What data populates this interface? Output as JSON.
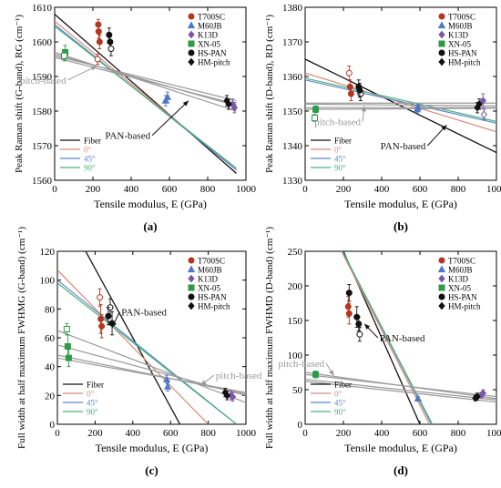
{
  "legend_markers": [
    {
      "label": "T700SC",
      "color": "#b5351f",
      "shape": "circle"
    },
    {
      "label": "M60JB",
      "color": "#4f78c6",
      "shape": "triangle"
    },
    {
      "label": "K13D",
      "color": "#7c56a8",
      "shape": "diamond"
    },
    {
      "label": "XN-05",
      "color": "#2e9a48",
      "shape": "square"
    },
    {
      "label": "HS-PAN",
      "color": "#111111",
      "shape": "circle"
    },
    {
      "label": "HM-pitch",
      "color": "#111111",
      "shape": "diamond"
    }
  ],
  "legend_lines": [
    {
      "label": "Fiber",
      "color": "#111111"
    },
    {
      "label": "0°",
      "color": "#d98a7a"
    },
    {
      "label": "45°",
      "color": "#5b86c8"
    },
    {
      "label": "90°",
      "color": "#4db07a"
    }
  ],
  "chart_data": [
    {
      "id": "a",
      "panel_label": "(a)",
      "type": "scatter",
      "ylabel": "Peak Raman shift (G-band), RG (cm⁻¹)",
      "xlabel": "Tensile modulus, E (GPa)",
      "xlim": [
        0,
        1000
      ],
      "ylim": [
        1560,
        1610
      ],
      "xticks": [
        0,
        200,
        400,
        600,
        800,
        1000
      ],
      "yticks": [
        1560,
        1570,
        1580,
        1590,
        1600,
        1610
      ],
      "annotations": [
        {
          "text": "pitch-based",
          "color": "#9a9a9a",
          "at": [
            70,
            1589
          ],
          "arrow_to": [
            220,
            1593
          ]
        },
        {
          "text": "PAN-based",
          "color": "#111111",
          "at": [
            510,
            1573
          ],
          "arrow_to": [
            700,
            1583
          ]
        }
      ],
      "lines": [
        {
          "series": "Fiber",
          "color": "#111111",
          "x": [
            0,
            950
          ],
          "y": [
            1608,
            1562
          ]
        },
        {
          "series": "0°",
          "color": "#d98a7a",
          "x": [
            0,
            950
          ],
          "y": [
            1606,
            1563
          ]
        },
        {
          "series": "45°",
          "color": "#5b86c8",
          "x": [
            0,
            950
          ],
          "y": [
            1605,
            1563
          ]
        },
        {
          "series": "90°",
          "color": "#4db07a",
          "x": [
            0,
            950
          ],
          "y": [
            1604.5,
            1563.5
          ]
        },
        {
          "series": "pitch",
          "color": "#9a9a9a",
          "x": [
            0,
            950
          ],
          "y": [
            1597,
            1580
          ]
        },
        {
          "series": "pitch",
          "color": "#9a9a9a",
          "x": [
            0,
            950
          ],
          "y": [
            1596.5,
            1581.5
          ]
        },
        {
          "series": "pitch",
          "color": "#9a9a9a",
          "x": [
            0,
            950
          ],
          "y": [
            1596,
            1583
          ]
        },
        {
          "series": "pitch",
          "color": "#9a9a9a",
          "x": [
            0,
            950
          ],
          "y": [
            1595.5,
            1582
          ]
        }
      ],
      "points": [
        {
          "series": "T700SC",
          "x": 230,
          "y": 1603,
          "err": 2
        },
        {
          "series": "T700SC",
          "x": 225,
          "y": 1595,
          "err": 1.5,
          "hollow": true
        },
        {
          "series": "T700SC",
          "x": 235,
          "y": 1600,
          "err": 2
        },
        {
          "series": "T700SC",
          "x": 228,
          "y": 1605,
          "err": 1.5
        },
        {
          "series": "M60JB",
          "x": 590,
          "y": 1584,
          "err": 1.5
        },
        {
          "series": "M60JB",
          "x": 580,
          "y": 1583,
          "err": 1.5
        },
        {
          "series": "K13D",
          "x": 940,
          "y": 1581,
          "err": 1.5
        },
        {
          "series": "K13D",
          "x": 930,
          "y": 1582,
          "err": 1.5
        },
        {
          "series": "XN-05",
          "x": 55,
          "y": 1597,
          "err": 2
        },
        {
          "series": "XN-05",
          "x": 50,
          "y": 1596,
          "err": 1.5,
          "hollow": true
        },
        {
          "series": "HS-PAN",
          "x": 290,
          "y": 1600,
          "err": 2
        },
        {
          "series": "HS-PAN",
          "x": 295,
          "y": 1598,
          "err": 2,
          "hollow": true
        },
        {
          "series": "HS-PAN",
          "x": 285,
          "y": 1602,
          "err": 2
        },
        {
          "series": "HM-pitch",
          "x": 900,
          "y": 1583,
          "err": 1.5
        },
        {
          "series": "HM-pitch",
          "x": 910,
          "y": 1582,
          "err": 1.5
        }
      ]
    },
    {
      "id": "b",
      "panel_label": "(b)",
      "type": "scatter",
      "ylabel": "Peak Raman shift (D-band), RD (cm⁻¹)",
      "xlabel": "Tensile modulus, E (GPa)",
      "xlim": [
        0,
        1000
      ],
      "ylim": [
        1330,
        1380
      ],
      "xticks": [
        0,
        200,
        400,
        600,
        800,
        1000
      ],
      "yticks": [
        1330,
        1340,
        1350,
        1360,
        1370,
        1380
      ],
      "annotations": [
        {
          "text": "pitch-based",
          "color": "#9a9a9a",
          "at": [
            300,
            1347
          ],
          "arrow_to": [
            310,
            1351.5
          ]
        },
        {
          "text": "PAN-based",
          "color": "#111111",
          "at": [
            640,
            1340
          ],
          "arrow_to": [
            740,
            1346
          ]
        }
      ],
      "lines": [
        {
          "series": "Fiber",
          "color": "#111111",
          "x": [
            0,
            1000
          ],
          "y": [
            1365,
            1338
          ]
        },
        {
          "series": "0°",
          "color": "#d98a7a",
          "x": [
            0,
            1000
          ],
          "y": [
            1361,
            1344
          ]
        },
        {
          "series": "45°",
          "color": "#5b86c8",
          "x": [
            0,
            1000
          ],
          "y": [
            1359,
            1346.5
          ]
        },
        {
          "series": "90°",
          "color": "#4db07a",
          "x": [
            0,
            1000
          ],
          "y": [
            1359.5,
            1347
          ]
        },
        {
          "series": "pitch",
          "color": "#9a9a9a",
          "x": [
            0,
            1000
          ],
          "y": [
            1351,
            1351
          ]
        },
        {
          "series": "pitch",
          "color": "#9a9a9a",
          "x": [
            0,
            1000
          ],
          "y": [
            1352,
            1351.5
          ]
        },
        {
          "series": "pitch",
          "color": "#9a9a9a",
          "x": [
            0,
            1000
          ],
          "y": [
            1350.5,
            1350.8
          ]
        },
        {
          "series": "pitch",
          "color": "#9a9a9a",
          "x": [
            0,
            1000
          ],
          "y": [
            1352.3,
            1352.3
          ]
        }
      ],
      "points": [
        {
          "series": "T700SC",
          "x": 230,
          "y": 1361,
          "err": 2,
          "hollow": true
        },
        {
          "series": "T700SC",
          "x": 235,
          "y": 1357,
          "err": 2
        },
        {
          "series": "T700SC",
          "x": 240,
          "y": 1355,
          "err": 2
        },
        {
          "series": "M60JB",
          "x": 590,
          "y": 1351,
          "err": 1
        },
        {
          "series": "M60JB",
          "x": 585,
          "y": 1350.5,
          "err": 1
        },
        {
          "series": "K13D",
          "x": 930,
          "y": 1353,
          "err": 2
        },
        {
          "series": "K13D",
          "x": 935,
          "y": 1349,
          "err": 1.5,
          "hollow": true
        },
        {
          "series": "XN-05",
          "x": 50,
          "y": 1348,
          "err": 1,
          "hollow": true
        },
        {
          "series": "XN-05",
          "x": 55,
          "y": 1350.5,
          "err": 1
        },
        {
          "series": "HS-PAN",
          "x": 280,
          "y": 1357,
          "err": 2
        },
        {
          "series": "HS-PAN",
          "x": 290,
          "y": 1355,
          "err": 2,
          "hollow": true
        },
        {
          "series": "HS-PAN",
          "x": 285,
          "y": 1356,
          "err": 2
        },
        {
          "series": "HM-pitch",
          "x": 900,
          "y": 1351,
          "err": 1.5
        },
        {
          "series": "HM-pitch",
          "x": 910,
          "y": 1352,
          "err": 1.5
        }
      ]
    },
    {
      "id": "c",
      "panel_label": "(c)",
      "type": "scatter",
      "ylabel": "Full width at half maximum FWHMG (G-band) (cm⁻¹)",
      "xlabel": "Tensile modulus, E (GPa)",
      "xlim": [
        0,
        1000
      ],
      "ylim": [
        0,
        120
      ],
      "xticks": [
        0,
        200,
        400,
        600,
        800,
        1000
      ],
      "yticks": [
        0,
        20,
        40,
        60,
        80,
        100,
        120
      ],
      "annotations": [
        {
          "text": "PAN-based",
          "color": "#111111",
          "at": [
            330,
            78
          ],
          "arrow_to": [
            290,
            67
          ]
        },
        {
          "text": "pitch-based",
          "color": "#9a9a9a",
          "at": [
            830,
            34
          ],
          "arrow_to": [
            760,
            27
          ]
        }
      ],
      "lines": [
        {
          "series": "Fiber",
          "color": "#111111",
          "x": [
            150,
            650
          ],
          "y": [
            120,
            0
          ]
        },
        {
          "series": "0°",
          "color": "#d98a7a",
          "x": [
            0,
            800
          ],
          "y": [
            107,
            0
          ]
        },
        {
          "series": "45°",
          "color": "#5b86c8",
          "x": [
            0,
            950
          ],
          "y": [
            100,
            0
          ]
        },
        {
          "series": "90°",
          "color": "#4db07a",
          "x": [
            0,
            950
          ],
          "y": [
            98,
            0
          ]
        },
        {
          "series": "pitch",
          "color": "#9a9a9a",
          "x": [
            0,
            1000
          ],
          "y": [
            65,
            15
          ]
        },
        {
          "series": "pitch",
          "color": "#9a9a9a",
          "x": [
            0,
            1000
          ],
          "y": [
            55,
            20
          ]
        },
        {
          "series": "pitch",
          "color": "#9a9a9a",
          "x": [
            0,
            1000
          ],
          "y": [
            48,
            21
          ]
        },
        {
          "series": "pitch",
          "color": "#9a9a9a",
          "x": [
            0,
            1000
          ],
          "y": [
            46,
            22
          ]
        }
      ],
      "points": [
        {
          "series": "T700SC",
          "x": 225,
          "y": 88,
          "err": 6,
          "hollow": true
        },
        {
          "series": "T700SC",
          "x": 230,
          "y": 73,
          "err": 10
        },
        {
          "series": "T700SC",
          "x": 235,
          "y": 68,
          "err": 8
        },
        {
          "series": "M60JB",
          "x": 580,
          "y": 31,
          "err": 3
        },
        {
          "series": "M60JB",
          "x": 585,
          "y": 26,
          "err": 3
        },
        {
          "series": "K13D",
          "x": 920,
          "y": 20,
          "err": 3
        },
        {
          "series": "K13D",
          "x": 930,
          "y": 19,
          "err": 3
        },
        {
          "series": "XN-05",
          "x": 50,
          "y": 66,
          "err": 4,
          "hollow": true
        },
        {
          "series": "XN-05",
          "x": 55,
          "y": 54,
          "err": 8
        },
        {
          "series": "XN-05",
          "x": 60,
          "y": 46,
          "err": 6
        },
        {
          "series": "HS-PAN",
          "x": 280,
          "y": 81,
          "err": 6,
          "hollow": true
        },
        {
          "series": "HS-PAN",
          "x": 270,
          "y": 75,
          "err": 6
        },
        {
          "series": "HS-PAN",
          "x": 290,
          "y": 70,
          "err": 8
        },
        {
          "series": "HM-pitch",
          "x": 900,
          "y": 20,
          "err": 3
        },
        {
          "series": "HM-pitch",
          "x": 890,
          "y": 22,
          "err": 3
        }
      ]
    },
    {
      "id": "d",
      "panel_label": "(d)",
      "type": "scatter",
      "ylabel": "Full width at half maximum FWHMD (D-band) (cm⁻¹)",
      "xlabel": "Tensile modulus, E (GPa)",
      "xlim": [
        0,
        1000
      ],
      "ylim": [
        0,
        250
      ],
      "xticks": [
        0,
        200,
        400,
        600,
        800,
        1000
      ],
      "yticks": [
        0,
        50,
        100,
        150,
        200,
        250
      ],
      "annotations": [
        {
          "text": "pitch-based",
          "color": "#9a9a9a",
          "at": [
            110,
            88
          ],
          "arrow_to": [
            150,
            70
          ]
        },
        {
          "text": "PAN-based",
          "color": "#111111",
          "at": [
            380,
            125
          ],
          "arrow_to": [
            310,
            145
          ]
        }
      ],
      "lines": [
        {
          "series": "Fiber",
          "color": "#111111",
          "x": [
            200,
            600
          ],
          "y": [
            250,
            0
          ]
        },
        {
          "series": "0°",
          "color": "#d98a7a",
          "x": [
            190,
            650
          ],
          "y": [
            250,
            0
          ]
        },
        {
          "series": "45°",
          "color": "#5b86c8",
          "x": [
            195,
            660
          ],
          "y": [
            250,
            0
          ]
        },
        {
          "series": "90°",
          "color": "#4db07a",
          "x": [
            195,
            665
          ],
          "y": [
            250,
            0
          ]
        },
        {
          "series": "pitch",
          "color": "#9a9a9a",
          "x": [
            0,
            1000
          ],
          "y": [
            75,
            37
          ]
        },
        {
          "series": "pitch",
          "color": "#9a9a9a",
          "x": [
            0,
            1000
          ],
          "y": [
            72,
            40
          ]
        },
        {
          "series": "pitch",
          "color": "#9a9a9a",
          "x": [
            0,
            1000
          ],
          "y": [
            65,
            35
          ]
        },
        {
          "series": "pitch",
          "color": "#9a9a9a",
          "x": [
            0,
            1000
          ],
          "y": [
            62,
            32
          ]
        }
      ],
      "points": [
        {
          "series": "T700SC",
          "x": 225,
          "y": 170,
          "err": 15
        },
        {
          "series": "T700SC",
          "x": 230,
          "y": 160,
          "err": 15
        },
        {
          "series": "M60JB",
          "x": 590,
          "y": 37,
          "err": 3
        },
        {
          "series": "K13D",
          "x": 930,
          "y": 45,
          "err": 5
        },
        {
          "series": "K13D",
          "x": 920,
          "y": 42,
          "err": 4
        },
        {
          "series": "XN-05",
          "x": 55,
          "y": 72,
          "err": 5
        },
        {
          "series": "HS-PAN",
          "x": 230,
          "y": 190,
          "err": 12
        },
        {
          "series": "HS-PAN",
          "x": 270,
          "y": 155,
          "err": 15
        },
        {
          "series": "HS-PAN",
          "x": 285,
          "y": 130,
          "err": 10,
          "hollow": true
        },
        {
          "series": "HS-PAN",
          "x": 280,
          "y": 145,
          "err": 10
        },
        {
          "series": "HM-pitch",
          "x": 900,
          "y": 40,
          "err": 5
        },
        {
          "series": "HM-pitch",
          "x": 890,
          "y": 38,
          "err": 4
        }
      ]
    }
  ]
}
